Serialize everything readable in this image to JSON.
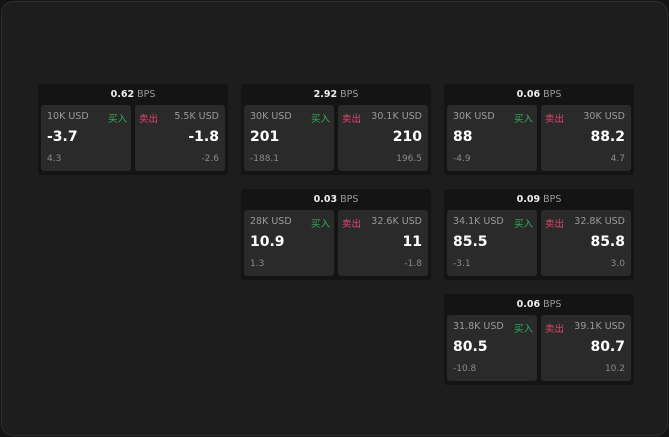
{
  "labels": {
    "buy": "买入",
    "sell": "卖出",
    "unit": "BPS"
  },
  "colors": {
    "buy": "#2fb15a",
    "sell": "#e0466e"
  },
  "quotes": [
    {
      "spread": "0.62",
      "bid_amount": "10K USD",
      "bid": "-3.7",
      "bid_change": "4.3",
      "ask_amount": "5.5K USD",
      "ask": "-1.8",
      "ask_change": "-2.6"
    },
    {
      "spread": "2.92",
      "bid_amount": "30K USD",
      "bid": "201",
      "bid_change": "-188.1",
      "ask_amount": "30.1K USD",
      "ask": "210",
      "ask_change": "196.5"
    },
    {
      "spread": "0.06",
      "bid_amount": "30K USD",
      "bid": "88",
      "bid_change": "-4.9",
      "ask_amount": "30K USD",
      "ask": "88.2",
      "ask_change": "4.7"
    },
    {
      "spread": "0.03",
      "bid_amount": "28K USD",
      "bid": "10.9",
      "bid_change": "1.3",
      "ask_amount": "32.6K USD",
      "ask": "11",
      "ask_change": "-1.8"
    },
    {
      "spread": "0.09",
      "bid_amount": "34.1K USD",
      "bid": "85.5",
      "bid_change": "-3.1",
      "ask_amount": "32.8K USD",
      "ask": "85.8",
      "ask_change": "3.0"
    },
    {
      "spread": "0.06",
      "bid_amount": "31.8K USD",
      "bid": "80.5",
      "bid_change": "-10.8",
      "ask_amount": "39.1K USD",
      "ask": "80.7",
      "ask_change": "10.2"
    }
  ]
}
